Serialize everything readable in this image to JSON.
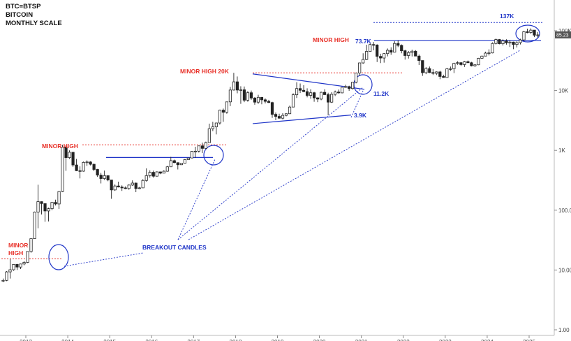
{
  "header": {
    "symbol": "BTC=BTSP",
    "name": "BITCOIN",
    "scale": "MONTHLY SCALE"
  },
  "chart_data": {
    "type": "candlestick",
    "scale": "log",
    "ylim": [
      1,
      200000
    ],
    "x_start_year": 2013,
    "x_end_year": 2025,
    "years": [
      "2013",
      "2014",
      "2015",
      "2016",
      "2017",
      "2018",
      "2019",
      "2020",
      "2021",
      "2022",
      "2023",
      "2024",
      "2025"
    ],
    "y_ticks": [
      {
        "value": 1,
        "label": "1.00"
      },
      {
        "value": 10,
        "label": "10.00"
      },
      {
        "value": 100,
        "label": "100.0"
      },
      {
        "value": 1000,
        "label": "1K"
      },
      {
        "value": 10000,
        "label": "10K"
      },
      {
        "value": 100000,
        "label": "100K"
      }
    ],
    "last_price_label": "85.23",
    "candles": [
      [
        "2012-06",
        6.7,
        7.2,
        6.3,
        6.7
      ],
      [
        "2012-07",
        6.7,
        9.6,
        6.5,
        9.3
      ],
      [
        "2012-08",
        9.3,
        15.4,
        7.2,
        10.1
      ],
      [
        "2012-09",
        10.1,
        12.5,
        9.7,
        12.4
      ],
      [
        "2012-10",
        12.4,
        12.6,
        10.0,
        11.2
      ],
      [
        "2012-11",
        11.2,
        12.8,
        10.4,
        12.6
      ],
      [
        "2012-12",
        12.6,
        14.0,
        12.0,
        13.4
      ],
      [
        "2013-01",
        13.4,
        20.5,
        13.1,
        20.4
      ],
      [
        "2013-02",
        20.4,
        33.4,
        19.5,
        33.4
      ],
      [
        "2013-03",
        33.4,
        95,
        33.0,
        93
      ],
      [
        "2013-04",
        93,
        266,
        50,
        139
      ],
      [
        "2013-05",
        139,
        140,
        85,
        129
      ],
      [
        "2013-06",
        129,
        130,
        64,
        97
      ],
      [
        "2013-07",
        97,
        110,
        65,
        106
      ],
      [
        "2013-08",
        106,
        135,
        100,
        135
      ],
      [
        "2013-09",
        135,
        150,
        120,
        127
      ],
      [
        "2013-10",
        127,
        210,
        105,
        205
      ],
      [
        "2013-11",
        205,
        1240,
        200,
        1130
      ],
      [
        "2013-12",
        1130,
        1150,
        455,
        757
      ],
      [
        "2014-01",
        757,
        1000,
        720,
        930
      ],
      [
        "2014-02",
        930,
        940,
        530,
        570
      ],
      [
        "2014-03",
        570,
        720,
        450,
        457
      ],
      [
        "2014-04",
        457,
        540,
        340,
        449
      ],
      [
        "2014-05",
        449,
        650,
        440,
        630
      ],
      [
        "2014-06",
        630,
        680,
        550,
        640
      ],
      [
        "2014-07",
        640,
        660,
        560,
        586
      ],
      [
        "2014-08",
        586,
        600,
        450,
        480
      ],
      [
        "2014-09",
        480,
        490,
        360,
        386
      ],
      [
        "2014-10",
        386,
        420,
        280,
        338
      ],
      [
        "2014-11",
        338,
        460,
        320,
        378
      ],
      [
        "2014-12",
        378,
        380,
        305,
        320
      ],
      [
        "2015-01",
        320,
        320,
        155,
        218
      ],
      [
        "2015-02",
        218,
        270,
        210,
        254
      ],
      [
        "2015-03",
        254,
        300,
        240,
        244
      ],
      [
        "2015-04",
        244,
        260,
        210,
        236
      ],
      [
        "2015-05",
        236,
        250,
        225,
        230
      ],
      [
        "2015-06",
        230,
        270,
        220,
        263
      ],
      [
        "2015-07",
        263,
        315,
        255,
        284
      ],
      [
        "2015-08",
        284,
        290,
        200,
        230
      ],
      [
        "2015-09",
        230,
        245,
        225,
        236
      ],
      [
        "2015-10",
        236,
        330,
        235,
        314
      ],
      [
        "2015-11",
        314,
        500,
        300,
        378
      ],
      [
        "2015-12",
        378,
        465,
        350,
        430
      ],
      [
        "2016-01",
        430,
        460,
        350,
        370
      ],
      [
        "2016-02",
        370,
        445,
        365,
        437
      ],
      [
        "2016-03",
        437,
        440,
        400,
        416
      ],
      [
        "2016-04",
        416,
        465,
        415,
        448
      ],
      [
        "2016-05",
        448,
        550,
        440,
        531
      ],
      [
        "2016-06",
        531,
        780,
        530,
        673
      ],
      [
        "2016-07",
        673,
        700,
        610,
        624
      ],
      [
        "2016-08",
        624,
        625,
        480,
        575
      ],
      [
        "2016-09",
        575,
        615,
        590,
        609
      ],
      [
        "2016-10",
        609,
        720,
        605,
        700
      ],
      [
        "2016-11",
        700,
        750,
        690,
        745
      ],
      [
        "2016-12",
        745,
        980,
        740,
        963
      ],
      [
        "2017-01",
        963,
        1150,
        750,
        970
      ],
      [
        "2017-02",
        970,
        1200,
        920,
        1190
      ],
      [
        "2017-03",
        1190,
        1350,
        900,
        1080
      ],
      [
        "2017-04",
        1080,
        1400,
        1070,
        1350
      ],
      [
        "2017-05",
        1350,
        2800,
        1340,
        2300
      ],
      [
        "2017-06",
        2300,
        3000,
        2100,
        2480
      ],
      [
        "2017-07",
        2480,
        2900,
        1850,
        2870
      ],
      [
        "2017-08",
        2870,
        4800,
        2700,
        4700
      ],
      [
        "2017-09",
        4700,
        5000,
        3000,
        4340
      ],
      [
        "2017-10",
        4340,
        6500,
        4100,
        6470
      ],
      [
        "2017-11",
        6470,
        11500,
        5500,
        10200
      ],
      [
        "2017-12",
        10200,
        19800,
        10000,
        14000
      ],
      [
        "2018-01",
        14000,
        17200,
        9000,
        10200
      ],
      [
        "2018-02",
        10200,
        11800,
        6000,
        10300
      ],
      [
        "2018-03",
        10300,
        11700,
        6400,
        6900
      ],
      [
        "2018-04",
        6900,
        9800,
        6500,
        9200
      ],
      [
        "2018-05",
        9200,
        10000,
        7000,
        7500
      ],
      [
        "2018-06",
        7500,
        7800,
        5800,
        6400
      ],
      [
        "2018-07",
        6400,
        8500,
        6000,
        7700
      ],
      [
        "2018-08",
        7700,
        7800,
        5900,
        7000
      ],
      [
        "2018-09",
        7000,
        7400,
        6100,
        6600
      ],
      [
        "2018-10",
        6600,
        7000,
        6200,
        6300
      ],
      [
        "2018-11",
        6300,
        6500,
        3500,
        4000
      ],
      [
        "2018-12",
        4000,
        4300,
        3200,
        3700
      ],
      [
        "2019-01",
        3700,
        4100,
        3400,
        3450
      ],
      [
        "2019-02",
        3450,
        4200,
        3300,
        3850
      ],
      [
        "2019-03",
        3850,
        4150,
        3700,
        4100
      ],
      [
        "2019-04",
        4100,
        5600,
        4050,
        5300
      ],
      [
        "2019-05",
        5300,
        9000,
        5300,
        8500
      ],
      [
        "2019-06",
        8500,
        13800,
        7500,
        10800
      ],
      [
        "2019-07",
        10800,
        13100,
        9100,
        10100
      ],
      [
        "2019-08",
        10100,
        12300,
        9400,
        9600
      ],
      [
        "2019-09",
        9600,
        10900,
        7700,
        8300
      ],
      [
        "2019-10",
        8300,
        10500,
        7300,
        9200
      ],
      [
        "2019-11",
        9200,
        9500,
        6500,
        7550
      ],
      [
        "2019-12",
        7550,
        7700,
        6400,
        7200
      ],
      [
        "2020-01",
        7200,
        9600,
        6900,
        9350
      ],
      [
        "2020-02",
        9350,
        10500,
        8400,
        8550
      ],
      [
        "2020-03",
        8550,
        9200,
        3850,
        6400
      ],
      [
        "2020-04",
        6400,
        9400,
        6200,
        8650
      ],
      [
        "2020-05",
        8650,
        10000,
        8100,
        9450
      ],
      [
        "2020-06",
        9450,
        10400,
        8900,
        9150
      ],
      [
        "2020-07",
        9150,
        11450,
        9000,
        11350
      ],
      [
        "2020-08",
        11350,
        12500,
        11100,
        11650
      ],
      [
        "2020-09",
        11650,
        12050,
        9900,
        10800
      ],
      [
        "2020-10",
        10800,
        14000,
        10400,
        13800
      ],
      [
        "2020-11",
        13800,
        19900,
        13200,
        19700
      ],
      [
        "2020-12",
        19700,
        29300,
        17600,
        29000
      ],
      [
        "2021-01",
        29000,
        42000,
        28000,
        33100
      ],
      [
        "2021-02",
        33100,
        58300,
        32300,
        45200
      ],
      [
        "2021-03",
        45200,
        61800,
        44900,
        58800
      ],
      [
        "2021-04",
        58800,
        64800,
        47000,
        57700
      ],
      [
        "2021-05",
        57700,
        59500,
        30000,
        37300
      ],
      [
        "2021-06",
        37300,
        41300,
        28800,
        35000
      ],
      [
        "2021-07",
        35000,
        42300,
        29300,
        41500
      ],
      [
        "2021-08",
        41500,
        50500,
        37300,
        47100
      ],
      [
        "2021-09",
        47100,
        52900,
        39600,
        43800
      ],
      [
        "2021-10",
        43800,
        67000,
        43300,
        61300
      ],
      [
        "2021-11",
        61300,
        69000,
        53300,
        57000
      ],
      [
        "2021-12",
        57000,
        59100,
        42000,
        46300
      ],
      [
        "2022-01",
        46300,
        48000,
        32900,
        38500
      ],
      [
        "2022-02",
        38500,
        45800,
        34300,
        43200
      ],
      [
        "2022-03",
        43200,
        48200,
        37200,
        45500
      ],
      [
        "2022-04",
        45500,
        47400,
        37700,
        37700
      ],
      [
        "2022-05",
        37700,
        40000,
        26700,
        31800
      ],
      [
        "2022-06",
        31800,
        31900,
        17600,
        19900
      ],
      [
        "2022-07",
        19900,
        24600,
        18800,
        23300
      ],
      [
        "2022-08",
        23300,
        25200,
        19600,
        20000
      ],
      [
        "2022-09",
        20000,
        22800,
        18200,
        19400
      ],
      [
        "2022-10",
        19400,
        20900,
        18200,
        20500
      ],
      [
        "2022-11",
        20500,
        21400,
        15500,
        17200
      ],
      [
        "2022-12",
        17200,
        18400,
        16300,
        16550
      ],
      [
        "2023-01",
        16550,
        23900,
        16500,
        23100
      ],
      [
        "2023-02",
        23100,
        25200,
        21400,
        23150
      ],
      [
        "2023-03",
        23150,
        29200,
        19600,
        28500
      ],
      [
        "2023-04",
        28500,
        31000,
        26900,
        29250
      ],
      [
        "2023-05",
        29250,
        29800,
        25800,
        27200
      ],
      [
        "2023-06",
        27200,
        31400,
        24800,
        30450
      ],
      [
        "2023-07",
        30450,
        31800,
        28900,
        29200
      ],
      [
        "2023-08",
        29200,
        30200,
        25300,
        25950
      ],
      [
        "2023-09",
        25950,
        27500,
        24900,
        26950
      ],
      [
        "2023-10",
        26950,
        35200,
        26600,
        34650
      ],
      [
        "2023-11",
        34650,
        38400,
        34100,
        37700
      ],
      [
        "2023-12",
        37700,
        44700,
        37600,
        42300
      ],
      [
        "2024-01",
        42300,
        48900,
        38600,
        42600
      ],
      [
        "2024-02",
        42600,
        63900,
        41900,
        61200
      ],
      [
        "2024-03",
        61200,
        73700,
        59000,
        71300
      ],
      [
        "2024-04",
        71300,
        72700,
        59300,
        60600
      ],
      [
        "2024-05",
        60600,
        71900,
        56600,
        67500
      ],
      [
        "2024-06",
        67500,
        71900,
        58500,
        62700
      ],
      [
        "2024-07",
        62700,
        70000,
        53500,
        64600
      ],
      [
        "2024-08",
        64600,
        65600,
        49200,
        58900
      ],
      [
        "2024-09",
        58900,
        66500,
        52600,
        63300
      ],
      [
        "2024-10",
        63300,
        73500,
        58900,
        70200
      ],
      [
        "2024-11",
        70200,
        99600,
        66800,
        96400
      ],
      [
        "2024-12",
        96400,
        108300,
        90700,
        93400
      ],
      [
        "2025-01",
        93400,
        109600,
        89200,
        102400
      ],
      [
        "2025-02",
        102400,
        102500,
        78300,
        84300
      ],
      [
        "2025-03",
        84300,
        95000,
        76600,
        85230
      ]
    ]
  },
  "annotations": {
    "minor_high_2013": "MINOR HIGH",
    "minor_high_2013_line2": "HIGH",
    "minor_high_2013_line1": "MINOR",
    "minor_high_2014": "MINOR HIGH",
    "minor_high_20k": "MINOR HIGH 20K",
    "minor_high_2021": "MINOR HIGH",
    "level_737k": "73.7K",
    "level_137k": "137K",
    "level_112k": "11.2K",
    "level_39k": "3.9K",
    "breakout_candles": "BREAKOUT CANDLES"
  },
  "colors": {
    "candle_up": "#ffffff",
    "candle_down": "#222222",
    "wick": "#222222",
    "red_annotation": "#e8332b",
    "blue_annotation": "#1f35c8",
    "trendline": "#3344cc",
    "price_box": "#555555"
  }
}
